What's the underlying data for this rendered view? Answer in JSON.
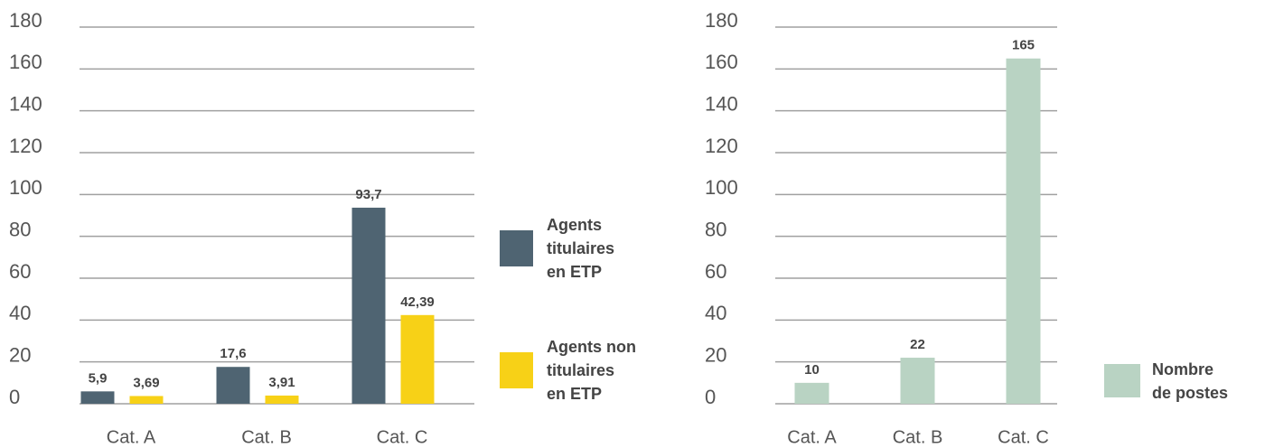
{
  "chart_data": [
    {
      "type": "bar",
      "categories": [
        "Cat. A",
        "Cat. B",
        "Cat. C"
      ],
      "series": [
        {
          "name": "Agents\ntitulaires\nen ETP",
          "color": "#4f6472",
          "values": [
            5.9,
            17.6,
            93.7
          ],
          "value_labels": [
            "5,9",
            "17,6",
            "93,7"
          ]
        },
        {
          "name": "Agents non\ntitulaires\nen ETP",
          "color": "#f7d117",
          "values": [
            3.69,
            3.91,
            42.39
          ],
          "value_labels": [
            "3,69",
            "3,91",
            "42,39"
          ]
        }
      ],
      "ylim": [
        0,
        180
      ],
      "yticks": [
        0,
        20,
        40,
        60,
        80,
        100,
        120,
        140,
        160,
        180
      ],
      "grid": true,
      "legend": "right"
    },
    {
      "type": "bar",
      "categories": [
        "Cat. A",
        "Cat. B",
        "Cat. C"
      ],
      "series": [
        {
          "name": "Nombre\nde postes",
          "color": "#b9d3c3",
          "values": [
            10,
            22,
            165
          ],
          "value_labels": [
            "10",
            "22",
            "165"
          ]
        }
      ],
      "ylim": [
        0,
        180
      ],
      "yticks": [
        0,
        20,
        40,
        60,
        80,
        100,
        120,
        140,
        160,
        180
      ],
      "grid": true,
      "legend": "right"
    }
  ]
}
